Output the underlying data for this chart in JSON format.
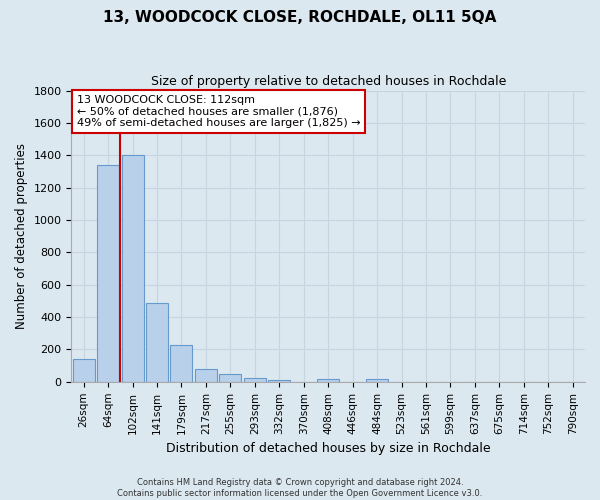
{
  "title": "13, WOODCOCK CLOSE, ROCHDALE, OL11 5QA",
  "subtitle": "Size of property relative to detached houses in Rochdale",
  "xlabel": "Distribution of detached houses by size in Rochdale",
  "ylabel": "Number of detached properties",
  "footer_line1": "Contains HM Land Registry data © Crown copyright and database right 2024.",
  "footer_line2": "Contains public sector information licensed under the Open Government Licence v3.0.",
  "bar_labels": [
    "26sqm",
    "64sqm",
    "102sqm",
    "141sqm",
    "179sqm",
    "217sqm",
    "255sqm",
    "293sqm",
    "332sqm",
    "370sqm",
    "408sqm",
    "446sqm",
    "484sqm",
    "523sqm",
    "561sqm",
    "599sqm",
    "637sqm",
    "675sqm",
    "714sqm",
    "752sqm",
    "790sqm"
  ],
  "bar_values": [
    140,
    1340,
    1400,
    490,
    225,
    80,
    50,
    25,
    10,
    0,
    20,
    0,
    20,
    0,
    0,
    0,
    0,
    0,
    0,
    0,
    0
  ],
  "bar_color": "#b8d0ea",
  "bar_edge_color": "#6699cc",
  "red_line_x": 1.5,
  "annotation_title": "13 WOODCOCK CLOSE: 112sqm",
  "annotation_line1": "← 50% of detached houses are smaller (1,876)",
  "annotation_line2": "49% of semi-detached houses are larger (1,825) →",
  "annotation_box_color": "white",
  "annotation_box_edge_color": "#cc0000",
  "red_line_color": "#cc0000",
  "grid_color": "#c8d4e0",
  "background_color": "#dce8f0",
  "ylim": [
    0,
    1800
  ],
  "yticks": [
    0,
    200,
    400,
    600,
    800,
    1000,
    1200,
    1400,
    1600,
    1800
  ]
}
